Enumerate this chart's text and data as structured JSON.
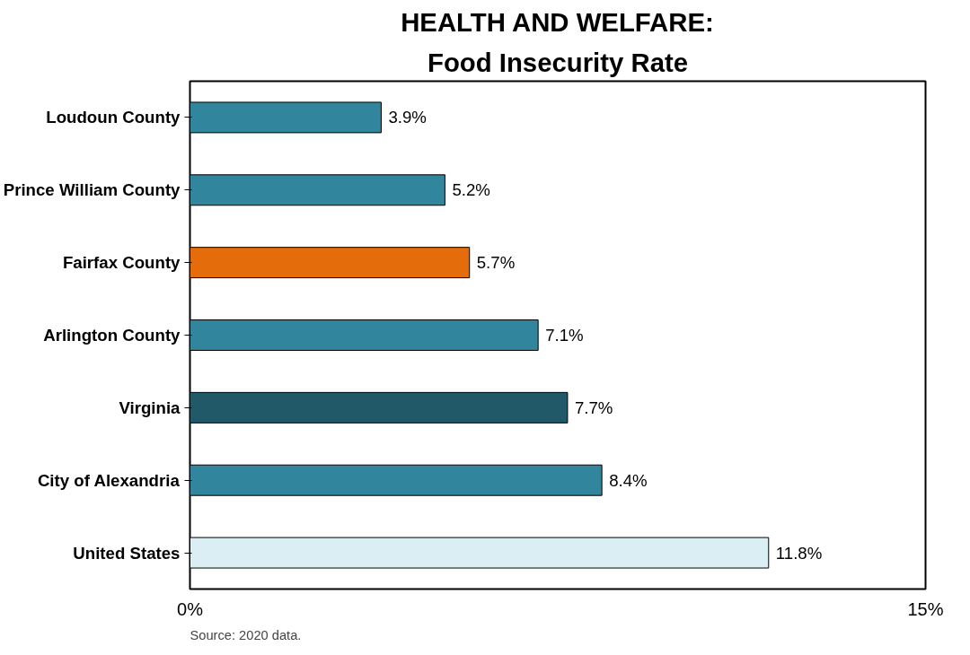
{
  "chart_data": {
    "type": "bar",
    "orientation": "horizontal",
    "title": "HEALTH AND WELFARE:",
    "subtitle": "Food Insecurity Rate",
    "categories": [
      "Loudoun County",
      "Prince William County",
      "Fairfax County",
      "Arlington County",
      "Virginia",
      "City of Alexandria",
      "United States"
    ],
    "values": [
      3.9,
      5.2,
      5.7,
      7.1,
      7.7,
      8.4,
      11.8
    ],
    "colors": [
      "#31859c",
      "#31859c",
      "#e46c0a",
      "#31859c",
      "#215968",
      "#31859c",
      "#dbeef4"
    ],
    "value_labels": [
      "3.9%",
      "5.2%",
      "5.7%",
      "7.1%",
      "7.7%",
      "8.4%",
      "11.8%"
    ],
    "xlim": [
      0,
      15
    ],
    "xticks": [
      {
        "value": 0,
        "label": "0%"
      },
      {
        "value": 15,
        "label": "15%"
      }
    ],
    "grid": false,
    "annotations": [
      "Source: 2020 data."
    ]
  }
}
